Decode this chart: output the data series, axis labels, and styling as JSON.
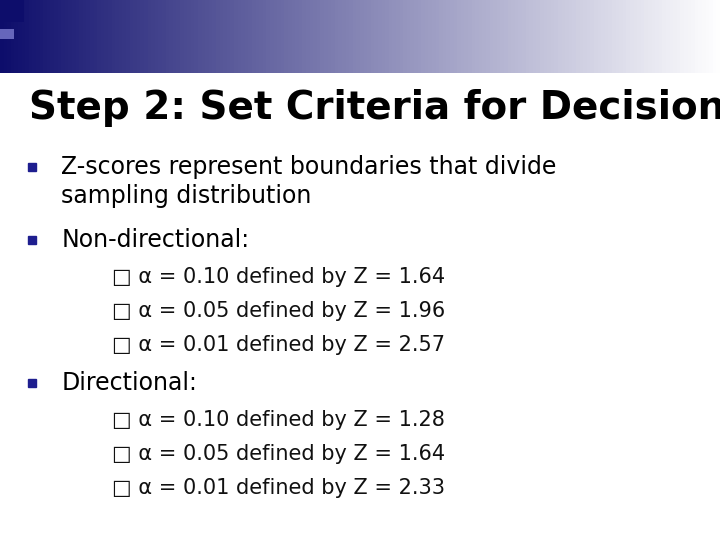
{
  "title": "Step 2: Set Criteria for Decision",
  "background_color": "#ffffff",
  "title_color": "#000000",
  "title_fontsize": 28,
  "bullet_color": "#1e1e8f",
  "text_color": "#000000",
  "sub_text_color": "#111111",
  "main_fontsize": 17,
  "sub_fontsize": 15,
  "header_gradient_left": "#0d0d6b",
  "header_gradient_right": "#ffffff",
  "corner_square_color": "#0d0d6b",
  "sub_bullets_nondirectional": [
    "□ α = 0.10 defined by Z = 1.64",
    "□ α = 0.05 defined by Z = 1.96",
    "□ α = 0.01 defined by Z = 2.57"
  ],
  "sub_bullets_directional": [
    "□ α = 0.10 defined by Z = 1.28",
    "□ α = 0.05 defined by Z = 1.64",
    "□ α = 0.01 defined by Z = 2.33"
  ]
}
